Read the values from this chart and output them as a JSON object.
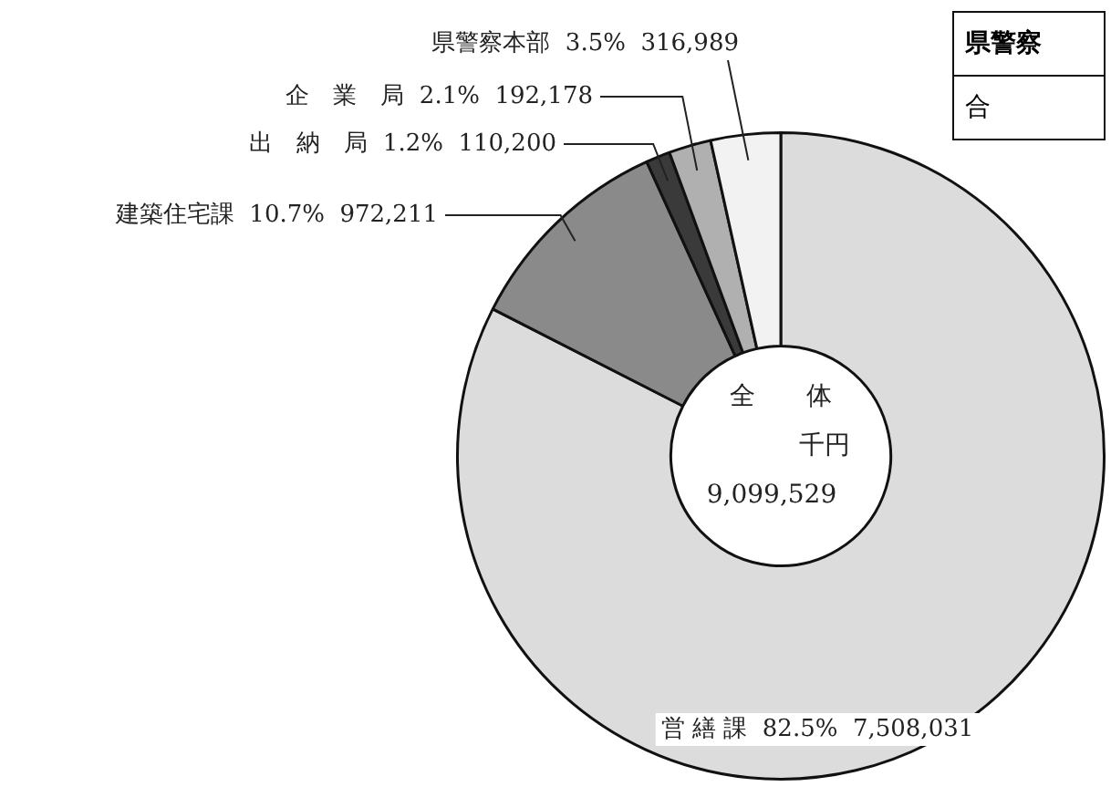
{
  "chart_data": {
    "type": "donut",
    "categories": [
      "営 繕 課",
      "建築住宅課",
      "出　納　局",
      "企　業　局",
      "県警察本部"
    ],
    "values": [
      7508031,
      972211,
      110200,
      192178,
      316989
    ],
    "value_labels": [
      "82.5%  7,508,031",
      "10.7%  972,211",
      "1.2%  110,200",
      "2.1%  192,178",
      "3.5%  316,989"
    ],
    "colors": [
      "#dcdcdc",
      "#8a8a8a",
      "#3a3a3a",
      "#b0b0b0",
      "#f2f2f2"
    ],
    "annotations": [
      "全　　体",
      "千円",
      "9,099,529",
      "県警察",
      "合"
    ]
  }
}
